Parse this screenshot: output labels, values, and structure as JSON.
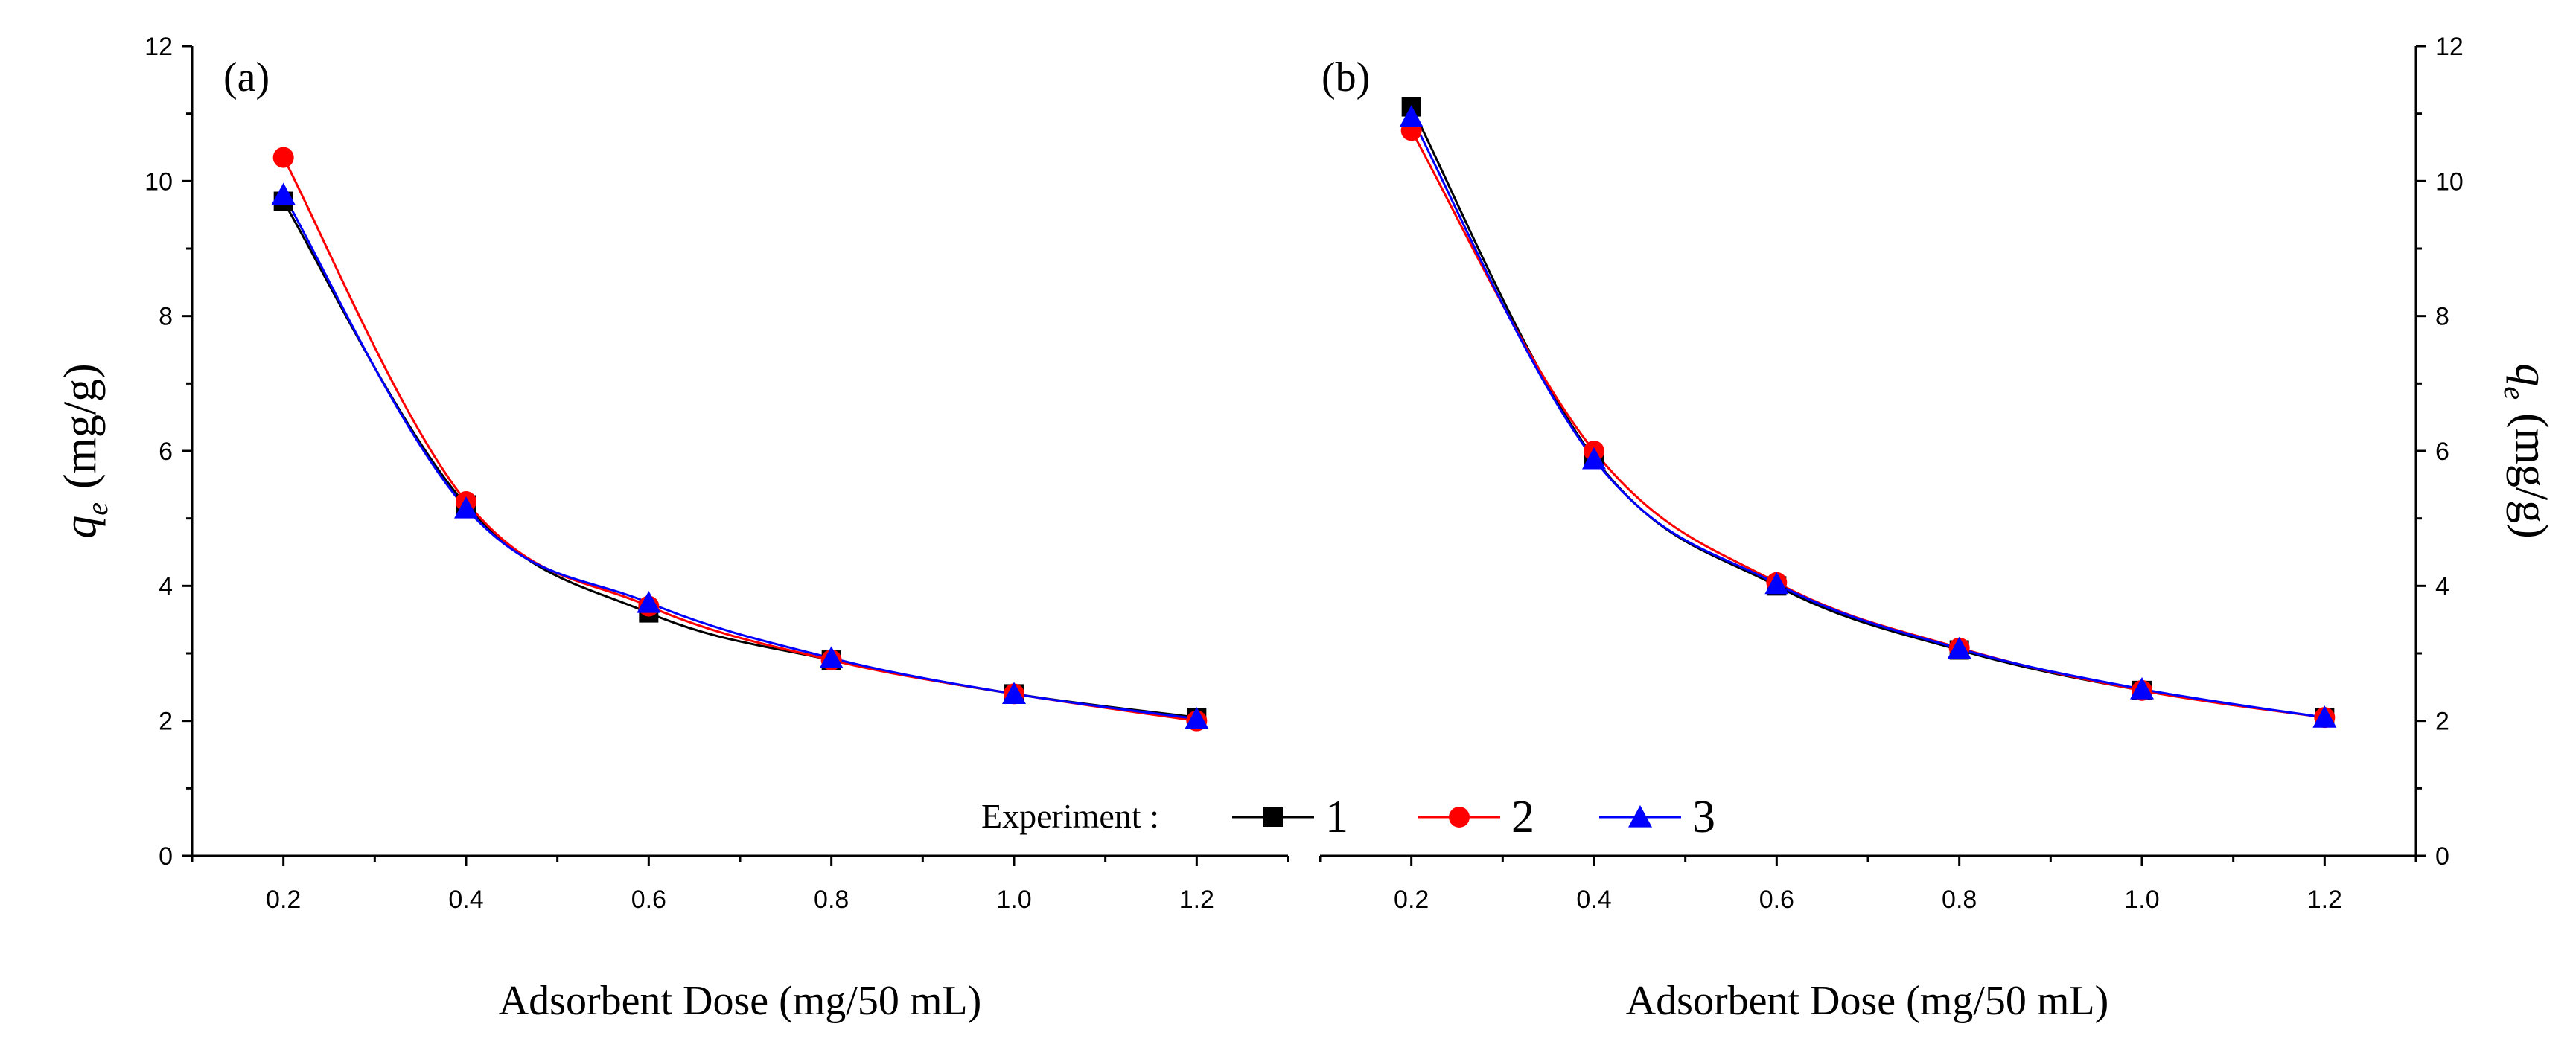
{
  "chart_data": {
    "type": "line",
    "legend": {
      "title": "Experiment :",
      "placement": "bottom-center",
      "entries": [
        "1",
        "2",
        "3"
      ]
    },
    "series_styles": [
      {
        "name": "1",
        "color": "#000000",
        "marker": "square"
      },
      {
        "name": "2",
        "color": "#ff0000",
        "marker": "circle"
      },
      {
        "name": "3",
        "color": "#0000ff",
        "marker": "triangle"
      }
    ],
    "panels": [
      {
        "label": "(a)",
        "xlabel": "Adsorbent Dose (mg/50 mL)",
        "ylabel_main": "q",
        "ylabel_sub": "e",
        "ylabel_unit": "(mg/g)",
        "y_axis_side": "left",
        "xlim": [
          0.1,
          1.3
        ],
        "ylim": [
          0,
          12
        ],
        "xticks": [
          "0.2",
          "0.4",
          "0.6",
          "0.8",
          "1.0",
          "1.2"
        ],
        "yticks": [
          "0",
          "2",
          "4",
          "6",
          "8",
          "10",
          "12"
        ],
        "x": [
          0.2,
          0.4,
          0.6,
          0.8,
          1.0,
          1.2
        ],
        "series": [
          {
            "name": "1",
            "values": [
              9.7,
              5.2,
              3.6,
              2.9,
              2.4,
              2.05
            ]
          },
          {
            "name": "2",
            "values": [
              10.35,
              5.25,
              3.7,
              2.9,
              2.4,
              2.0
            ]
          },
          {
            "name": "3",
            "values": [
              9.8,
              5.15,
              3.75,
              2.93,
              2.4,
              2.03
            ]
          }
        ]
      },
      {
        "label": "(b)",
        "xlabel": "Adsorbent Dose (mg/50 mL)",
        "ylabel_main": "q",
        "ylabel_sub": "e",
        "ylabel_unit": "(mg/g)",
        "y_axis_side": "right",
        "xlim": [
          0.1,
          1.3
        ],
        "ylim": [
          0,
          12
        ],
        "xticks": [
          "0.2",
          "0.4",
          "0.6",
          "0.8",
          "1.0",
          "1.2"
        ],
        "yticks": [
          "0",
          "2",
          "4",
          "6",
          "8",
          "10",
          "12"
        ],
        "x": [
          0.2,
          0.4,
          0.6,
          0.8,
          1.0,
          1.2
        ],
        "series": [
          {
            "name": "1",
            "values": [
              11.1,
              5.9,
              4.0,
              3.05,
              2.45,
              2.05
            ]
          },
          {
            "name": "2",
            "values": [
              10.75,
              6.0,
              4.05,
              3.08,
              2.45,
              2.05
            ]
          },
          {
            "name": "3",
            "values": [
              10.95,
              5.88,
              4.03,
              3.07,
              2.47,
              2.05
            ]
          }
        ]
      }
    ]
  }
}
